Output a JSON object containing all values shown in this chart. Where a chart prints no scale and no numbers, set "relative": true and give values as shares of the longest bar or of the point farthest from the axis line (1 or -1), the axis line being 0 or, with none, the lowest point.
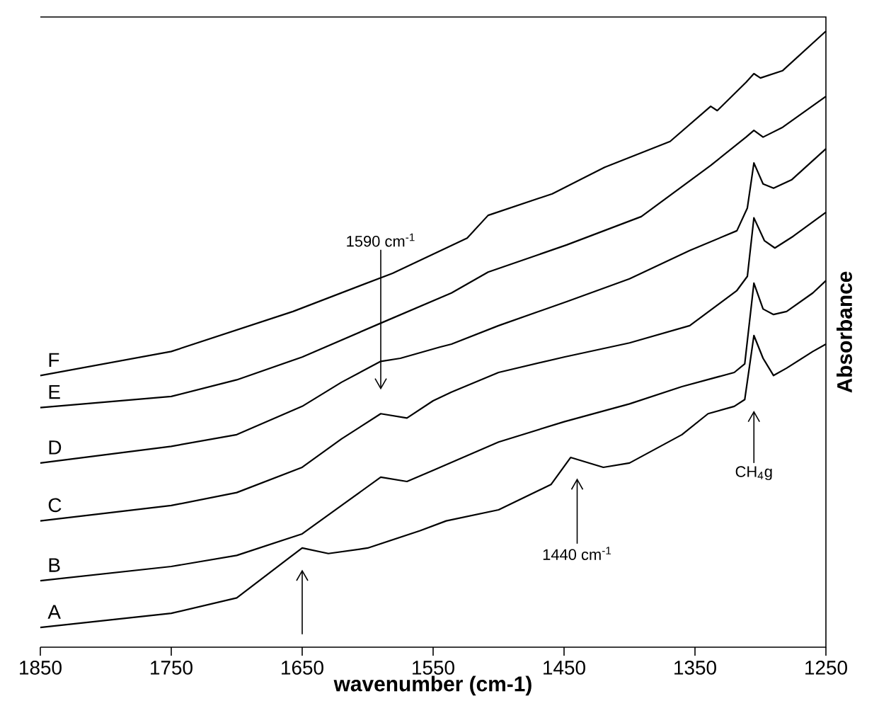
{
  "chart_data": {
    "type": "line",
    "relative": true,
    "xlabel": "wavenumber (cm-1)",
    "ylabel": "Absorbance",
    "xlim": [
      1850,
      1250
    ],
    "xticks": [
      1850,
      1750,
      1650,
      1550,
      1450,
      1350,
      1250
    ],
    "series": [
      {
        "name": "A",
        "color": "#000000",
        "x": [
          1850,
          1750,
          1700,
          1660,
          1650,
          1630,
          1600,
          1560,
          1540,
          1500,
          1460,
          1445,
          1420,
          1400,
          1360,
          1340,
          1320,
          1312,
          1305,
          1298,
          1290,
          1280,
          1260,
          1250
        ],
        "values": [
          0.032,
          0.055,
          0.08,
          0.145,
          0.161,
          0.152,
          0.161,
          0.189,
          0.205,
          0.223,
          0.264,
          0.308,
          0.292,
          0.299,
          0.345,
          0.379,
          0.391,
          0.402,
          0.506,
          0.469,
          0.441,
          0.453,
          0.48,
          0.492
        ]
      },
      {
        "name": "B",
        "color": "#000000",
        "x": [
          1850,
          1750,
          1700,
          1650,
          1620,
          1590,
          1570,
          1550,
          1500,
          1450,
          1400,
          1360,
          1320,
          1312,
          1305,
          1298,
          1290,
          1280,
          1260,
          1250
        ],
        "values": [
          0.108,
          0.131,
          0.149,
          0.184,
          0.23,
          0.276,
          0.269,
          0.287,
          0.333,
          0.366,
          0.395,
          0.423,
          0.446,
          0.46,
          0.591,
          0.549,
          0.54,
          0.545,
          0.575,
          0.595
        ]
      },
      {
        "name": "C",
        "color": "#000000",
        "x": [
          1850,
          1750,
          1700,
          1650,
          1620,
          1590,
          1570,
          1550,
          1536,
          1500,
          1450,
          1400,
          1354,
          1318,
          1310,
          1305,
          1297,
          1289,
          1275,
          1250
        ],
        "values": [
          0.205,
          0.23,
          0.251,
          0.292,
          0.338,
          0.379,
          0.372,
          0.4,
          0.414,
          0.446,
          0.471,
          0.494,
          0.522,
          0.579,
          0.602,
          0.697,
          0.66,
          0.648,
          0.667,
          0.706
        ]
      },
      {
        "name": "D",
        "color": "#000000",
        "x": [
          1850,
          1750,
          1700,
          1650,
          1620,
          1590,
          1575,
          1545,
          1536,
          1500,
          1448,
          1400,
          1354,
          1318,
          1310,
          1305,
          1298,
          1290,
          1276,
          1250
        ],
        "values": [
          0.299,
          0.326,
          0.345,
          0.391,
          0.43,
          0.464,
          0.469,
          0.487,
          0.492,
          0.522,
          0.561,
          0.598,
          0.644,
          0.676,
          0.713,
          0.786,
          0.752,
          0.745,
          0.759,
          0.809
        ]
      },
      {
        "name": "E",
        "color": "#000000",
        "x": [
          1850,
          1750,
          1700,
          1650,
          1590,
          1536,
          1508,
          1448,
          1391,
          1338,
          1311,
          1305,
          1298,
          1283,
          1250
        ],
        "values": [
          0.389,
          0.407,
          0.434,
          0.471,
          0.526,
          0.575,
          0.609,
          0.653,
          0.699,
          0.782,
          0.828,
          0.839,
          0.828,
          0.844,
          0.894
        ]
      },
      {
        "name": "F",
        "color": "#000000",
        "x": [
          1850,
          1750,
          1657,
          1581,
          1524,
          1508,
          1459,
          1419,
          1369,
          1338,
          1333,
          1311,
          1305,
          1300,
          1283,
          1250
        ],
        "values": [
          0.441,
          0.48,
          0.545,
          0.607,
          0.664,
          0.701,
          0.736,
          0.779,
          0.821,
          0.878,
          0.871,
          0.917,
          0.931,
          0.924,
          0.936,
          1.0
        ]
      }
    ],
    "annotations": [
      "1590 cm$^{-1}$",
      "1440 cm$^{-1}$",
      "CH$_{4}$g"
    ]
  }
}
